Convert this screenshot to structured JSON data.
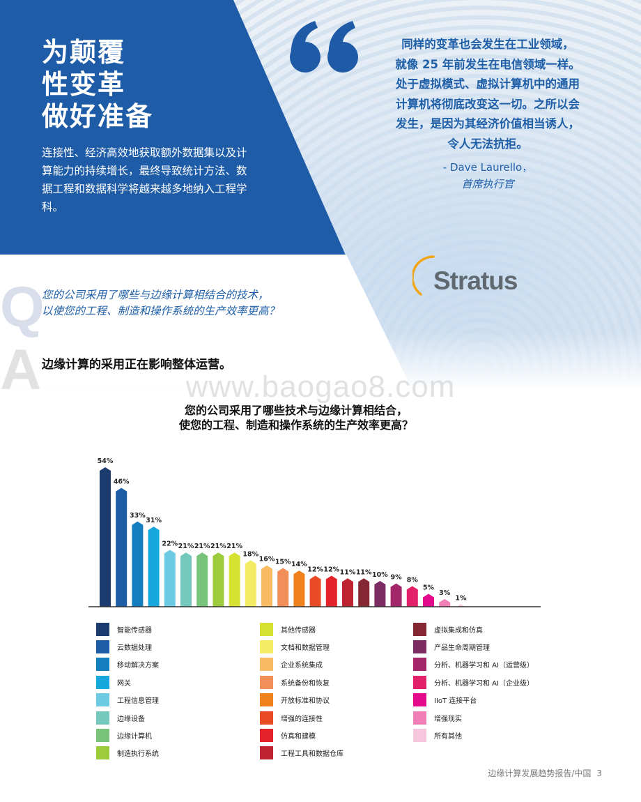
{
  "hero": {
    "title": "为颠覆\n性变革\n做好准备",
    "body": "连接性、经济高效地获取额外数据集以及计算能力的持续增长，最终导致统计方法、数据工程和数据科学将越来越多地纳入工程学科。"
  },
  "quote": {
    "text": "同样的变革也会发生在工业领域，\n就像 25 年前发生在电信领域一样。\n处于虚拟模式、虚拟计算机中的通用\n计算机将彻底改变这一切。之所以会\n发生，是因为其经济价值相当诱人，\n令人无法抗拒。",
    "author": "- Dave Laurello，",
    "role": "首席执行官"
  },
  "logo": {
    "text": "Stratus"
  },
  "qa": {
    "q_letter": "Q",
    "a_letter": "A",
    "question": "您的公司采用了哪些与边缘计算相结合的技术，\n以使您的工程、制造和操作系统的生产效率更高？",
    "answer": "边缘计算的采用正在影响整体运营。"
  },
  "watermark": "www.baogao8.com",
  "chart_data": {
    "type": "bar",
    "title": "您的公司采用了哪些技术与边缘计算相结合，\n使您的工程、制造和操作系统的生产效率更高？",
    "xlabel": "",
    "ylabel": "",
    "ylim": [
      0,
      54
    ],
    "grid": false,
    "legend_position": "bottom",
    "categories": [
      "智能传感器",
      "云数据处理",
      "移动解决方案",
      "网关",
      "工程信息管理",
      "边缘设备",
      "边缘计算机",
      "制造执行系统",
      "其他传感器",
      "文档和数据管理",
      "企业系统集成",
      "系统备份和恢复",
      "开放标准和协议",
      "增强的连接性",
      "仿真和建模",
      "工程工具和数据仓库",
      "虚拟集成和仿真",
      "产品生命周期管理",
      "分析、机器学习和 AI（运营级）",
      "分析、机器学习和 AI（企业级）",
      "IIoT 连接平台",
      "增强现实",
      "所有其他"
    ],
    "values": [
      54,
      46,
      33,
      31,
      22,
      21,
      21,
      21,
      21,
      18,
      16,
      15,
      14,
      12,
      12,
      11,
      11,
      10,
      9,
      8,
      5,
      3,
      1
    ],
    "data_labels": [
      "54%",
      "46%",
      "33%",
      "31%",
      "22%",
      "21%",
      "21%",
      "21%",
      "21%",
      "18%",
      "16%",
      "15%",
      "14%",
      "12%",
      "12%",
      "11%",
      "11%",
      "10%",
      "9%",
      "8%",
      "5%",
      "3%",
      "1%"
    ],
    "colors": [
      "#1c3b6f",
      "#1d5da6",
      "#127dbf",
      "#16a7dd",
      "#6ccbe3",
      "#74c8bc",
      "#79c37b",
      "#9ccb3c",
      "#d6e230",
      "#f3ec62",
      "#f8bb63",
      "#f28f59",
      "#f0821e",
      "#e94b26",
      "#e3222a",
      "#bf2231",
      "#852633",
      "#7c2b63",
      "#a3266a",
      "#e3206a",
      "#e30b8b",
      "#ef7fb6",
      "#f6c6dc"
    ]
  },
  "footer": {
    "text": "边缘计算发展趋势报告/中国",
    "page": "3"
  },
  "colors": {
    "brand_blue": "#1f5fa8",
    "wedge_blue": "#1e5ca7",
    "quote_mark": "#1f5aa6",
    "logo_gray": "#606870",
    "logo_arc": "#f2a516"
  }
}
